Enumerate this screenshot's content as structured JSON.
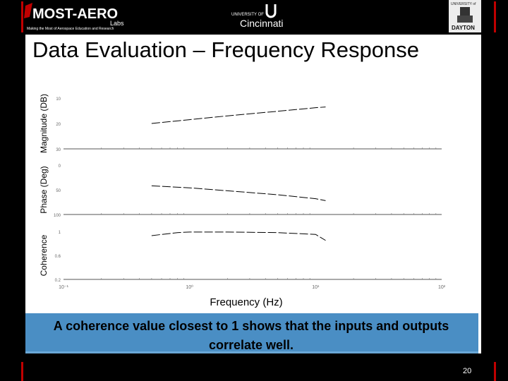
{
  "header": {
    "logo_left_text": "MOST-AERO",
    "logo_left_sub": "Labs",
    "logo_left_tagline": "Making the Most of Aerospace Education and Research",
    "logo_mid_top": "UNIVERSITY OF",
    "logo_mid_main": "Cincinnati",
    "logo_right_top": "UNIVERSITY of",
    "logo_right_main": "DAYTON"
  },
  "slide": {
    "title": "Data Evaluation – Frequency Response",
    "caption": "A coherence value closest to 1 shows that the inputs and outputs correlate well.",
    "page_number": "20"
  },
  "colors": {
    "accent_red": "#c00000",
    "caption_bg": "#4a8ec4"
  },
  "chart_data": {
    "type": "line",
    "xlabel": "Frequency (Hz)",
    "xscale": "log",
    "x_ticks": [
      "10⁻¹",
      "10⁰",
      "10¹",
      "10²"
    ],
    "xlim": [
      0.1,
      100
    ],
    "panels": [
      {
        "ylabel": "Magnitude (DB)",
        "y_ticks": [
          "10",
          "20",
          "30"
        ],
        "series": [
          {
            "x": [
              0.5,
              1,
              2,
              5,
              10,
              12
            ],
            "y": [
              -20,
              -18.5,
              -17,
              -15.2,
              -13.8,
              -13.5
            ]
          }
        ]
      },
      {
        "ylabel": "Phase (Deg)",
        "y_ticks": [
          "0",
          "50",
          "100"
        ],
        "series": [
          {
            "x": [
              0.5,
              1,
              2,
              5,
              10,
              12
            ],
            "y": [
              -42,
              -46,
              -52,
              -60,
              -68,
              -72
            ]
          }
        ]
      },
      {
        "ylabel": "Coherence",
        "y_ticks": [
          "1",
          "0.6",
          "0.2"
        ],
        "series": [
          {
            "x": [
              0.5,
              0.8,
              1,
              2,
              5,
              10,
              12
            ],
            "y": [
              0.93,
              0.98,
              0.99,
              0.99,
              0.98,
              0.95,
              0.85
            ]
          }
        ]
      }
    ]
  }
}
